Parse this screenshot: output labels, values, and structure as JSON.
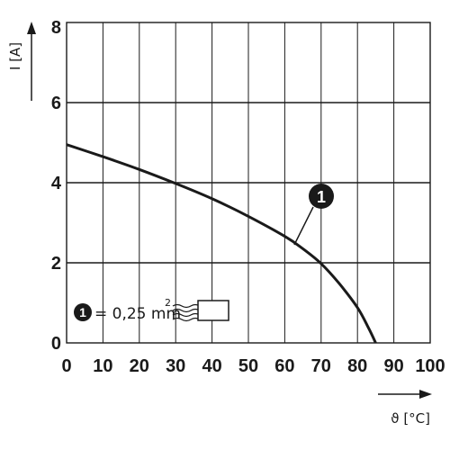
{
  "chart_data": {
    "type": "line",
    "xlabel": "ϑ [°C]",
    "ylabel": "I [A]",
    "xlim": [
      0,
      100
    ],
    "ylim": [
      0,
      8
    ],
    "x_ticks": [
      0,
      10,
      20,
      30,
      40,
      50,
      60,
      70,
      80,
      90,
      100
    ],
    "y_ticks": [
      0,
      2,
      4,
      6,
      8
    ],
    "grid": true,
    "series": [
      {
        "marker": "1",
        "x": [
          0,
          10,
          20,
          30,
          40,
          50,
          60,
          65,
          70,
          75,
          80,
          83,
          85
        ],
        "y": [
          4.95,
          4.65,
          4.33,
          3.98,
          3.6,
          3.16,
          2.66,
          2.35,
          1.98,
          1.48,
          0.88,
          0.38,
          0
        ]
      }
    ],
    "legend": {
      "marker": "1",
      "text": "= 0,25 mm",
      "superscript": "2"
    },
    "colors": {
      "line": "#1a1a1a",
      "grid": "#1a1a1a",
      "background": "#ffffff"
    }
  }
}
